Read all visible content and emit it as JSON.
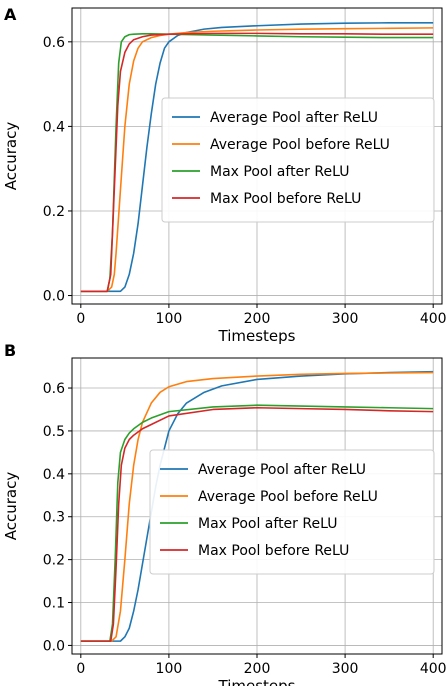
{
  "chart_data": [
    {
      "type": "line",
      "panel_label": "A",
      "xlabel": "Timesteps",
      "ylabel": "Accuracy",
      "xlim": [
        -10,
        410
      ],
      "ylim": [
        -0.02,
        0.68
      ],
      "xticks": [
        0,
        100,
        200,
        300,
        400
      ],
      "yticks": [
        0.0,
        0.2,
        0.4,
        0.6
      ],
      "grid": true,
      "legend_position": "center-right",
      "series": [
        {
          "name": "Average Pool after ReLU",
          "color": "#1f77b4",
          "x": [
            0,
            30,
            45,
            50,
            55,
            60,
            65,
            70,
            75,
            80,
            85,
            90,
            95,
            100,
            110,
            120,
            140,
            160,
            200,
            250,
            300,
            350,
            400
          ],
          "y": [
            0.01,
            0.01,
            0.01,
            0.02,
            0.05,
            0.1,
            0.17,
            0.26,
            0.35,
            0.43,
            0.5,
            0.55,
            0.585,
            0.6,
            0.615,
            0.622,
            0.63,
            0.634,
            0.638,
            0.642,
            0.644,
            0.645,
            0.645
          ]
        },
        {
          "name": "Average Pool before ReLU",
          "color": "#ff7f0e",
          "x": [
            0,
            30,
            35,
            38,
            40,
            45,
            50,
            55,
            60,
            65,
            70,
            80,
            90,
            100,
            120,
            150,
            200,
            250,
            300,
            350,
            400
          ],
          "y": [
            0.01,
            0.01,
            0.02,
            0.05,
            0.1,
            0.25,
            0.4,
            0.5,
            0.555,
            0.585,
            0.6,
            0.61,
            0.615,
            0.618,
            0.622,
            0.625,
            0.628,
            0.63,
            0.631,
            0.632,
            0.633
          ]
        },
        {
          "name": "Max Pool after ReLU",
          "color": "#2ca02c",
          "x": [
            0,
            30,
            33,
            36,
            40,
            43,
            46,
            50,
            55,
            60,
            70,
            80,
            100,
            150,
            200,
            250,
            300,
            350,
            400
          ],
          "y": [
            0.01,
            0.01,
            0.04,
            0.15,
            0.4,
            0.55,
            0.6,
            0.612,
            0.617,
            0.618,
            0.619,
            0.619,
            0.618,
            0.616,
            0.614,
            0.612,
            0.611,
            0.61,
            0.61
          ]
        },
        {
          "name": "Max Pool before ReLU",
          "color": "#d62728",
          "x": [
            0,
            30,
            34,
            38,
            42,
            45,
            50,
            55,
            60,
            70,
            80,
            100,
            150,
            200,
            250,
            300,
            350,
            400
          ],
          "y": [
            0.01,
            0.01,
            0.05,
            0.25,
            0.45,
            0.53,
            0.575,
            0.595,
            0.605,
            0.612,
            0.616,
            0.618,
            0.62,
            0.62,
            0.619,
            0.619,
            0.618,
            0.618
          ]
        }
      ]
    },
    {
      "type": "line",
      "panel_label": "B",
      "xlabel": "Timesteps",
      "ylabel": "Accuracy",
      "xlim": [
        -10,
        410
      ],
      "ylim": [
        -0.02,
        0.67
      ],
      "xticks": [
        0,
        100,
        200,
        300,
        400
      ],
      "yticks": [
        0.0,
        0.1,
        0.2,
        0.3,
        0.4,
        0.5,
        0.6
      ],
      "grid": true,
      "legend_position": "center-right",
      "series": [
        {
          "name": "Average Pool after ReLU",
          "color": "#1f77b4",
          "x": [
            0,
            35,
            45,
            50,
            55,
            60,
            65,
            70,
            75,
            80,
            85,
            90,
            95,
            100,
            110,
            120,
            140,
            160,
            200,
            250,
            300,
            350,
            400
          ],
          "y": [
            0.01,
            0.01,
            0.01,
            0.02,
            0.04,
            0.08,
            0.13,
            0.19,
            0.25,
            0.31,
            0.37,
            0.42,
            0.46,
            0.5,
            0.54,
            0.565,
            0.59,
            0.605,
            0.62,
            0.628,
            0.633,
            0.636,
            0.638
          ]
        },
        {
          "name": "Average Pool before ReLU",
          "color": "#ff7f0e",
          "x": [
            0,
            35,
            40,
            45,
            50,
            55,
            60,
            65,
            70,
            80,
            90,
            100,
            120,
            150,
            200,
            250,
            300,
            350,
            400
          ],
          "y": [
            0.01,
            0.01,
            0.02,
            0.08,
            0.2,
            0.33,
            0.42,
            0.48,
            0.52,
            0.565,
            0.59,
            0.603,
            0.615,
            0.622,
            0.628,
            0.632,
            0.634,
            0.635,
            0.636
          ]
        },
        {
          "name": "Max Pool after ReLU",
          "color": "#2ca02c",
          "x": [
            0,
            33,
            36,
            39,
            42,
            45,
            50,
            55,
            60,
            70,
            80,
            100,
            150,
            200,
            250,
            300,
            350,
            400
          ],
          "y": [
            0.01,
            0.01,
            0.05,
            0.2,
            0.38,
            0.45,
            0.48,
            0.495,
            0.505,
            0.52,
            0.53,
            0.545,
            0.556,
            0.56,
            0.558,
            0.556,
            0.554,
            0.552
          ]
        },
        {
          "name": "Max Pool before ReLU",
          "color": "#d62728",
          "x": [
            0,
            34,
            37,
            40,
            43,
            46,
            50,
            55,
            60,
            70,
            80,
            100,
            150,
            200,
            250,
            300,
            350,
            400
          ],
          "y": [
            0.01,
            0.01,
            0.05,
            0.18,
            0.33,
            0.42,
            0.46,
            0.48,
            0.49,
            0.505,
            0.515,
            0.535,
            0.55,
            0.554,
            0.552,
            0.55,
            0.547,
            0.545
          ]
        }
      ]
    }
  ]
}
